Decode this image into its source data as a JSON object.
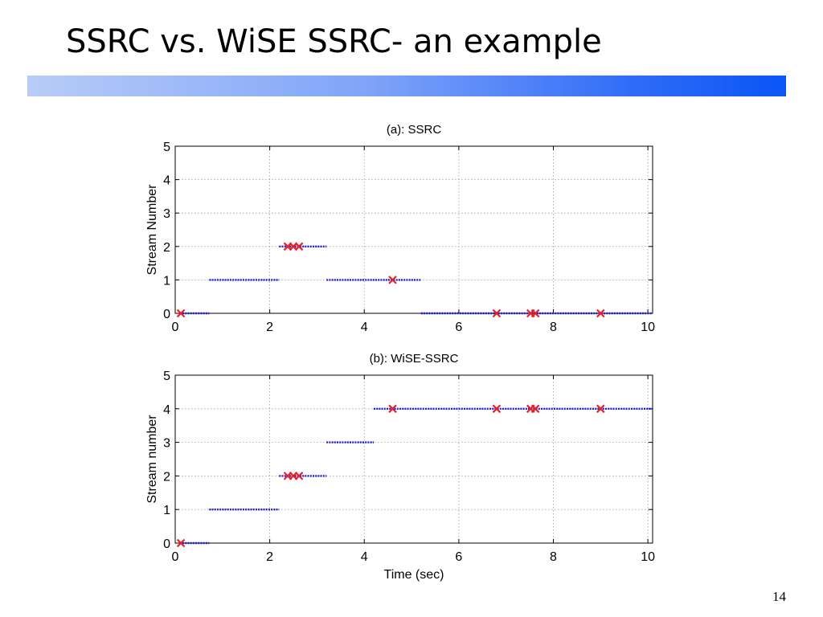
{
  "slide": {
    "title": "SSRC vs. WiSE SSRC- an example",
    "page_number": "14"
  },
  "chart_data": [
    {
      "type": "line",
      "title": "(a): SSRC",
      "xlabel": "",
      "ylabel": "Stream Number",
      "xlim": [
        0,
        10.1
      ],
      "ylim": [
        0,
        5
      ],
      "xticks": [
        0,
        2,
        4,
        6,
        8,
        10
      ],
      "yticks": [
        0,
        1,
        2,
        3,
        4,
        5
      ],
      "grid": true,
      "series": [
        {
          "style": "blue dotted segments",
          "color": "#1f1fd6",
          "segments": [
            {
              "x": [
                0.1,
                0.72
              ],
              "y": 0
            },
            {
              "x": [
                0.72,
                2.2
              ],
              "y": 1
            },
            {
              "x": [
                2.2,
                3.2
              ],
              "y": 2
            },
            {
              "x": [
                3.2,
                5.2
              ],
              "y": 1
            },
            {
              "x": [
                5.2,
                10.1
              ],
              "y": 0
            }
          ]
        },
        {
          "style": "red x markers",
          "color": "#e8202a",
          "points": [
            {
              "x": 0.12,
              "y": 0
            },
            {
              "x": 2.38,
              "y": 2
            },
            {
              "x": 2.5,
              "y": 2
            },
            {
              "x": 2.62,
              "y": 2
            },
            {
              "x": 4.6,
              "y": 1
            },
            {
              "x": 6.8,
              "y": 0
            },
            {
              "x": 7.52,
              "y": 0
            },
            {
              "x": 7.62,
              "y": 0
            },
            {
              "x": 9.0,
              "y": 0
            }
          ]
        }
      ]
    },
    {
      "type": "line",
      "title": "(b): WiSE-SSRC",
      "xlabel": "Time (sec)",
      "ylabel": "Stream number",
      "xlim": [
        0,
        10.1
      ],
      "ylim": [
        0,
        5
      ],
      "xticks": [
        0,
        2,
        4,
        6,
        8,
        10
      ],
      "yticks": [
        0,
        1,
        2,
        3,
        4,
        5
      ],
      "grid": true,
      "series": [
        {
          "style": "blue dotted segments",
          "color": "#1f1fd6",
          "segments": [
            {
              "x": [
                0.1,
                0.72
              ],
              "y": 0
            },
            {
              "x": [
                0.72,
                2.2
              ],
              "y": 1
            },
            {
              "x": [
                2.2,
                3.2
              ],
              "y": 2
            },
            {
              "x": [
                3.2,
                4.2
              ],
              "y": 3
            },
            {
              "x": [
                4.2,
                10.1
              ],
              "y": 4
            }
          ]
        },
        {
          "style": "red x markers",
          "color": "#e8202a",
          "points": [
            {
              "x": 0.12,
              "y": 0
            },
            {
              "x": 2.38,
              "y": 2
            },
            {
              "x": 2.5,
              "y": 2
            },
            {
              "x": 2.62,
              "y": 2
            },
            {
              "x": 4.6,
              "y": 4
            },
            {
              "x": 6.8,
              "y": 4
            },
            {
              "x": 7.52,
              "y": 4
            },
            {
              "x": 7.62,
              "y": 4
            },
            {
              "x": 9.0,
              "y": 4
            }
          ]
        }
      ]
    }
  ]
}
